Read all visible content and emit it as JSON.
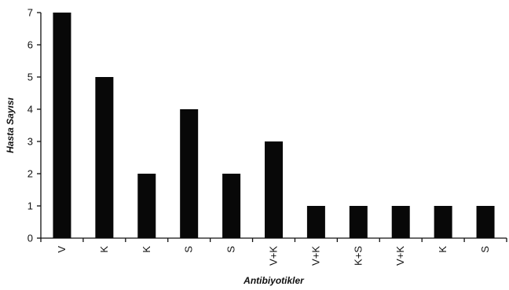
{
  "chart_data": {
    "type": "bar",
    "title": "",
    "xlabel": "Antibiyotikler",
    "ylabel": "Hasta Sayısı",
    "categories": [
      "V",
      "K",
      "K",
      "S",
      "S",
      "V+K",
      "V+K",
      "K+S",
      "V+K",
      "K",
      "S"
    ],
    "values": [
      7,
      5,
      2,
      4,
      2,
      3,
      1,
      1,
      1,
      1,
      1
    ],
    "ylim": [
      0,
      7
    ],
    "yticks": [
      "0",
      "1",
      "2",
      "3",
      "4",
      "5",
      "6",
      "7"
    ],
    "grid": false,
    "legend": "none",
    "bar_color": "#080808"
  }
}
